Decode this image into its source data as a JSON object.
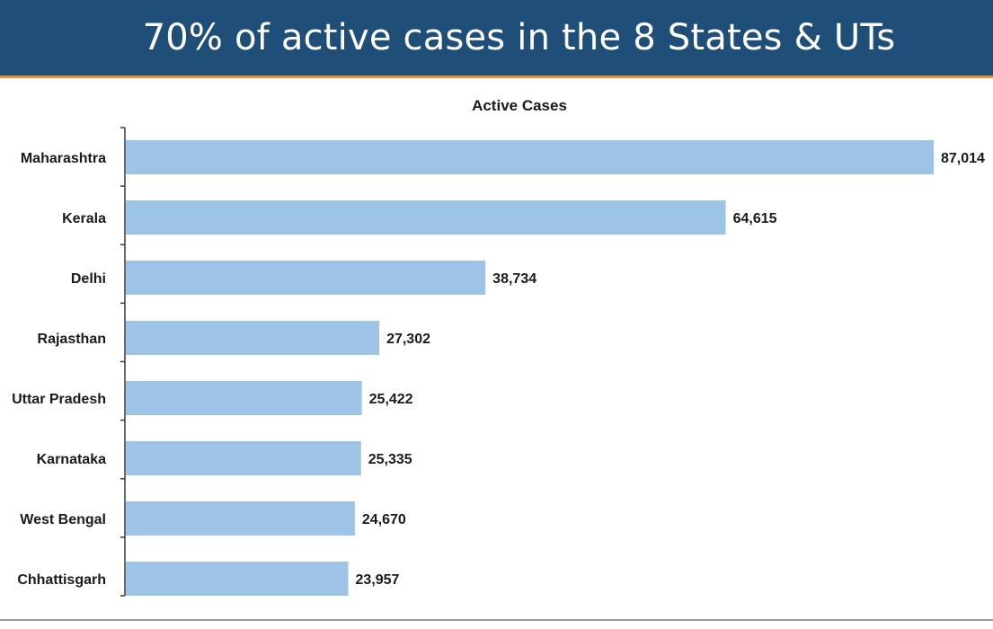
{
  "header": {
    "title": "70% of active cases in the 8 States & UTs"
  },
  "colors": {
    "banner": "#1f4e79",
    "accent": "#e0913a",
    "bar": "#9dc3e6"
  },
  "chart_data": {
    "type": "bar",
    "orientation": "horizontal",
    "title": "Active Cases",
    "xlabel": "",
    "ylabel": "",
    "categories": [
      "Maharashtra",
      "Kerala",
      "Delhi",
      "Rajasthan",
      "Uttar Pradesh",
      "Karnataka",
      "West Bengal",
      "Chhattisgarh"
    ],
    "values": [
      87014,
      64615,
      38734,
      27302,
      25422,
      25335,
      24670,
      23957
    ],
    "value_labels": [
      "87,014",
      "64,615",
      "38,734",
      "27,302",
      "25,422",
      "25,335",
      "24,670",
      "23,957"
    ],
    "xlim": [
      0,
      87014
    ],
    "grid": false,
    "legend": "none"
  }
}
